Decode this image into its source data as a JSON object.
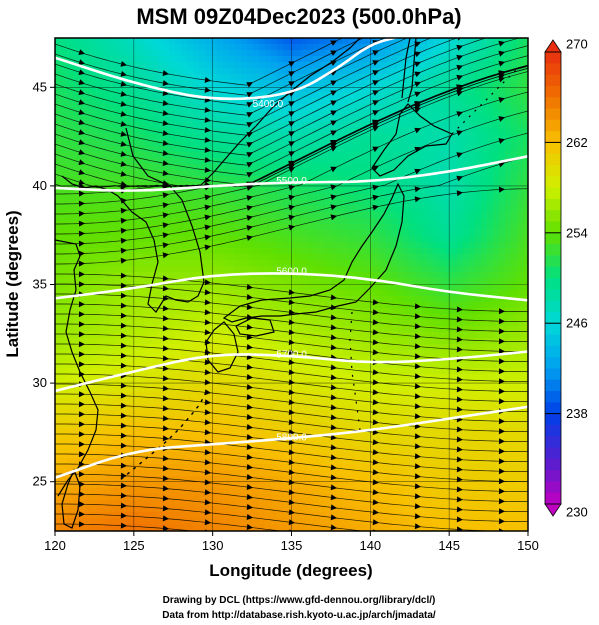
{
  "title": "MSM 09Z04Dec2023 (500.0hPa)",
  "xlabel": "Longitude (degrees)",
  "ylabel": "Latitude  (degrees)",
  "credits": [
    "Drawing by DCL (https://www.gfd-dennou.org/library/dcl/)",
    "Data from http://database.rish.kyoto-u.ac.jp/arch/jmadata/"
  ],
  "chart_data": {
    "type": "map",
    "xlim": [
      120,
      150
    ],
    "ylim": [
      22.5,
      47.5
    ],
    "x_ticks": [
      "120",
      "125",
      "130",
      "135",
      "140",
      "145",
      "150"
    ],
    "y_ticks": [
      "25",
      "30",
      "35",
      "40",
      "45"
    ],
    "colorbar": {
      "range": [
        230,
        270
      ],
      "ticks": [
        "230",
        "238",
        "246",
        "254",
        "262",
        "270"
      ],
      "colors": [
        "#c000c0",
        "#5020d0",
        "#0040e8",
        "#00a0f0",
        "#00d8d8",
        "#00e080",
        "#60e000",
        "#d0f000",
        "#f8c000",
        "#f07000",
        "#e83010"
      ]
    },
    "contours": [
      {
        "label": "5400.0",
        "lat_at_lon": [
          [
            120,
            46.5
          ],
          [
            125,
            45.2
          ],
          [
            130,
            44.3
          ],
          [
            135,
            44.6
          ],
          [
            138,
            46.0
          ],
          [
            140,
            47.2
          ],
          [
            142,
            47.6
          ]
        ]
      },
      {
        "label": "5500.0",
        "lat_at_lon": [
          [
            120,
            39.9
          ],
          [
            125,
            39.7
          ],
          [
            130,
            40.0
          ],
          [
            135,
            40.2
          ],
          [
            140,
            40.2
          ],
          [
            145,
            40.7
          ],
          [
            150,
            41.5
          ]
        ]
      },
      {
        "label": "5600.0",
        "lat_at_lon": [
          [
            120,
            34.3
          ],
          [
            125,
            34.8
          ],
          [
            130,
            35.5
          ],
          [
            135,
            35.6
          ],
          [
            140,
            35.3
          ],
          [
            145,
            34.6
          ],
          [
            150,
            34.2
          ]
        ]
      },
      {
        "label": "5700.0",
        "lat_at_lon": [
          [
            120,
            29.6
          ],
          [
            125,
            30.6
          ],
          [
            130,
            31.5
          ],
          [
            135,
            31.4
          ],
          [
            140,
            31.0
          ],
          [
            145,
            31.2
          ],
          [
            150,
            31.6
          ]
        ]
      },
      {
        "label": "5800.0",
        "lat_at_lon": [
          [
            120,
            25.2
          ],
          [
            125,
            26.6
          ],
          [
            130,
            26.9
          ],
          [
            135,
            27.2
          ],
          [
            140,
            27.6
          ],
          [
            145,
            28.2
          ],
          [
            150,
            28.8
          ]
        ]
      }
    ],
    "temperature_field": [
      {
        "lat": 47.5,
        "values": [
          250,
          247,
          243,
          239,
          241,
          246,
          251
        ]
      },
      {
        "lat": 45,
        "values": [
          251,
          249,
          246,
          244,
          246,
          249,
          252
        ]
      },
      {
        "lat": 42.5,
        "values": [
          252,
          251,
          249,
          248,
          249,
          248,
          251
        ]
      },
      {
        "lat": 40,
        "values": [
          253,
          253,
          252,
          251,
          250,
          248,
          252
        ]
      },
      {
        "lat": 37.5,
        "values": [
          254,
          254,
          254,
          253,
          252,
          249,
          253
        ]
      },
      {
        "lat": 35,
        "values": [
          255,
          256,
          256,
          255,
          254,
          252,
          254
        ]
      },
      {
        "lat": 32.5,
        "values": [
          256,
          257,
          258,
          257,
          256,
          255,
          256
        ]
      },
      {
        "lat": 30,
        "values": [
          258,
          259,
          260,
          259,
          258,
          258,
          258
        ]
      },
      {
        "lat": 27.5,
        "values": [
          261,
          262,
          262,
          261,
          260,
          260,
          260
        ]
      },
      {
        "lat": 25,
        "values": [
          263,
          264,
          264,
          263,
          262,
          261,
          261
        ]
      },
      {
        "lat": 22.5,
        "values": [
          265,
          266,
          265,
          264,
          263,
          262,
          262
        ]
      }
    ]
  }
}
